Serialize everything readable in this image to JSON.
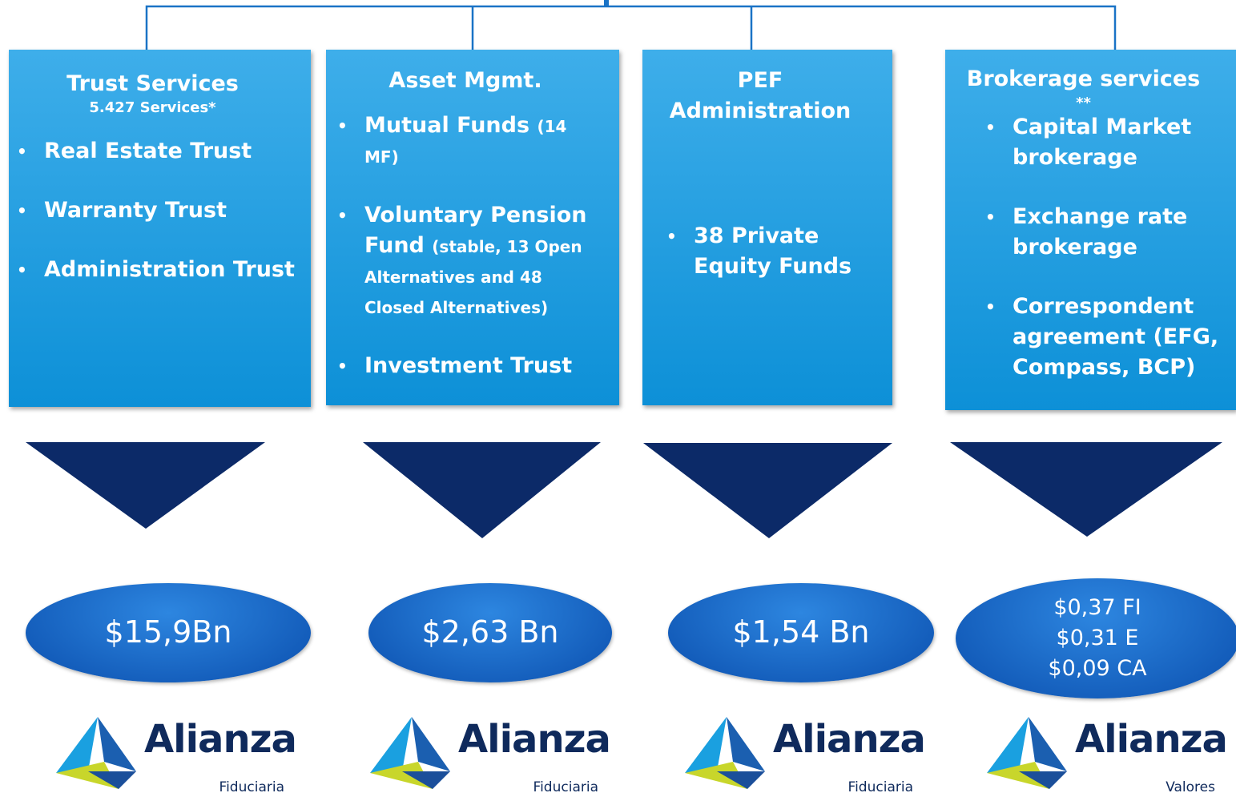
{
  "columns": [
    {
      "title": "Trust Services",
      "subtitle": "5.427 Services*",
      "bullets": [
        {
          "text": "Real Estate Trust"
        },
        {
          "text": "Warranty Trust"
        },
        {
          "text": "Administration Trust"
        }
      ],
      "values": [
        "$15,9Bn"
      ],
      "logo": {
        "name": "Alianza",
        "division": "Fiduciaria"
      }
    },
    {
      "title": "Asset Mgmt.",
      "bullets": [
        {
          "text": "Mutual Funds",
          "note": "(14 MF)"
        },
        {
          "text": "Voluntary Pension Fund",
          "note": "(stable, 13 Open Alternatives and 48 Closed Alternatives)"
        },
        {
          "text": "Investment Trust"
        }
      ],
      "values": [
        "$2,63 Bn"
      ],
      "logo": {
        "name": "Alianza",
        "division": "Fiduciaria"
      }
    },
    {
      "title": "PEF Administration",
      "bullets": [
        {
          "text": "38 Private Equity Funds"
        }
      ],
      "values": [
        "$1,54 Bn"
      ],
      "logo": {
        "name": "Alianza",
        "division": "Fiduciaria"
      }
    },
    {
      "title": "Brokerage services",
      "subtitle": "**",
      "bullets": [
        {
          "text": "Capital Market brokerage"
        },
        {
          "text": "Exchange rate brokerage"
        },
        {
          "text": "Correspondent agreement (EFG, Compass, BCP)"
        }
      ],
      "values": [
        "$0,37 FI",
        "$0,31 E",
        "$0,09 CA"
      ],
      "logo": {
        "name": "Alianza",
        "division": "Valores"
      }
    }
  ]
}
